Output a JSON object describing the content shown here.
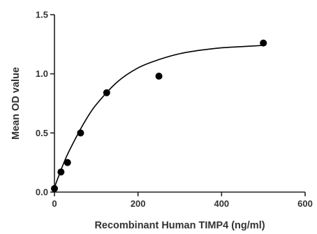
{
  "chart_data": {
    "type": "scatter",
    "title": "",
    "xlabel": "Recombinant Human TIMP4 (ng/ml)",
    "ylabel": "Mean OD value",
    "xlim": [
      0,
      600
    ],
    "ylim": [
      0,
      1.5
    ],
    "xticks": [
      "0",
      "200",
      "400",
      "600"
    ],
    "yticks": [
      "0.0",
      "0.5",
      "1.0",
      "1.5"
    ],
    "grid": false,
    "legend": "none",
    "series": [
      {
        "type": "scatter",
        "x": [
          0,
          15.6,
          31.25,
          62.5,
          125,
          250,
          500
        ],
        "y": [
          0.03,
          0.17,
          0.25,
          0.5,
          0.84,
          0.98,
          1.26
        ],
        "color": "#000000"
      },
      {
        "type": "fitted-curve",
        "x": [
          0,
          25,
          50,
          75,
          100,
          150,
          200,
          250,
          300,
          350,
          400,
          450,
          500
        ],
        "y": [
          0.04,
          0.27,
          0.45,
          0.61,
          0.74,
          0.93,
          1.05,
          1.12,
          1.17,
          1.2,
          1.22,
          1.23,
          1.24
        ],
        "color": "#000000"
      }
    ]
  }
}
